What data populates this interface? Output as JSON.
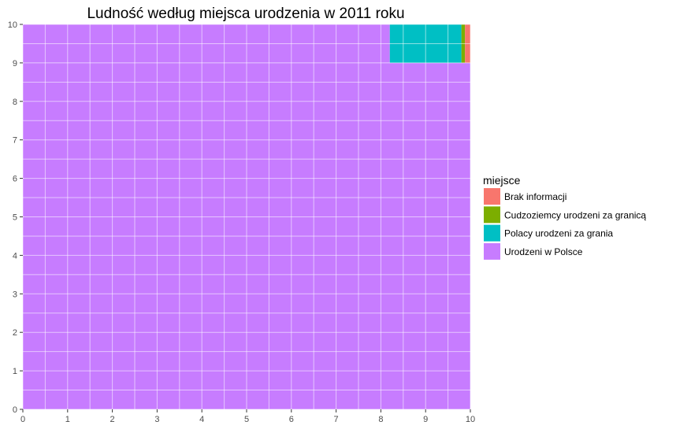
{
  "chart_data": {
    "type": "waffle",
    "title": "Ludność według miejsca urodzenia w 2011 roku",
    "xlabel": "",
    "ylabel": "",
    "xlim": [
      0,
      10
    ],
    "ylim": [
      0,
      10
    ],
    "x_ticks": [
      "0",
      "1",
      "2",
      "3",
      "4",
      "5",
      "6",
      "7",
      "8",
      "9",
      "10"
    ],
    "y_ticks": [
      "0",
      "1",
      "2",
      "3",
      "4",
      "5",
      "6",
      "7",
      "8",
      "9",
      "10"
    ],
    "grid": true,
    "legend": {
      "title": "miejsce",
      "position": "right",
      "entries": [
        {
          "name": "Brak informacji",
          "color": "#F8766D"
        },
        {
          "name": "Cudzoziemcy urodzeni za granicą",
          "color": "#7CAE00"
        },
        {
          "name": "Polacy urodzeni za grania",
          "color": "#00BFC4"
        },
        {
          "name": "Urodzeni w Polsce",
          "color": "#C77CFF"
        }
      ]
    },
    "series": [
      {
        "name": "Urodzeni w Polsce",
        "color": "#C77CFF",
        "rects": [
          {
            "x0": 0,
            "x1": 10,
            "y0": 0,
            "y1": 9
          },
          {
            "x0": 0,
            "x1": 8.2,
            "y0": 9,
            "y1": 10
          }
        ]
      },
      {
        "name": "Polacy urodzeni za grania",
        "color": "#00BFC4",
        "rects": [
          {
            "x0": 8.2,
            "x1": 9.8,
            "y0": 9,
            "y1": 10
          }
        ]
      },
      {
        "name": "Cudzoziemcy urodzeni za granicą",
        "color": "#7CAE00",
        "rects": [
          {
            "x0": 9.8,
            "x1": 9.88,
            "y0": 9,
            "y1": 10
          }
        ]
      },
      {
        "name": "Brak informacji",
        "color": "#F8766D",
        "rects": [
          {
            "x0": 9.88,
            "x1": 10,
            "y0": 9,
            "y1": 10
          }
        ]
      }
    ]
  }
}
